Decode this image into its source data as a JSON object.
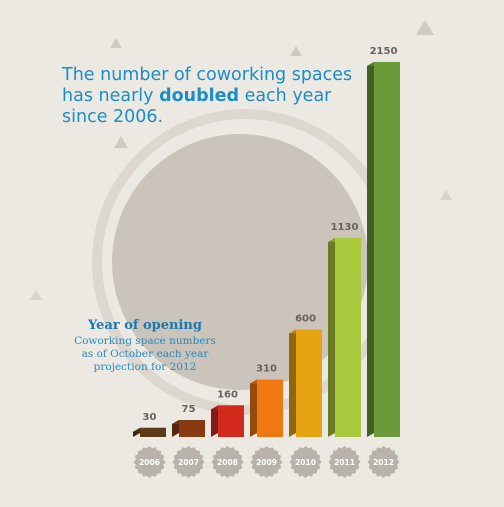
{
  "chart_data": {
    "type": "bar3d",
    "title_lines": [
      [
        "The number of coworking spaces"
      ],
      [
        "has nearly ",
        "doubled",
        " each year"
      ],
      [
        "since 2006."
      ]
    ],
    "annotation": {
      "heading": "Year of opening",
      "lines": [
        "Coworking space numbers",
        "as of October each year",
        "projection for 2012"
      ]
    },
    "categories": [
      "2006",
      "2007",
      "2008",
      "2009",
      "2010",
      "2011",
      "2012"
    ],
    "values": [
      30,
      75,
      160,
      310,
      600,
      1130,
      2150
    ],
    "colors": [
      "#5e3b18",
      "#8a3a10",
      "#d42a1e",
      "#f07812",
      "#e6a414",
      "#a9c83c",
      "#6b9a3a"
    ]
  }
}
